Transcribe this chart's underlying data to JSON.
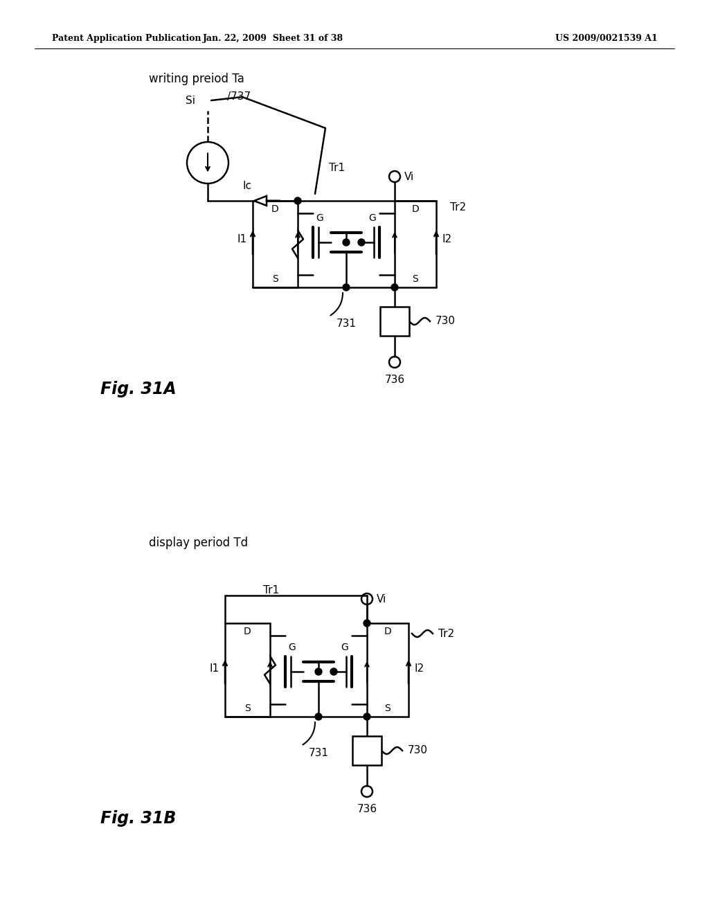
{
  "header_left": "Patent Application Publication",
  "header_mid": "Jan. 22, 2009  Sheet 31 of 38",
  "header_right": "US 2009/0021539 A1",
  "fig_a_label": "writing preiod Ta",
  "fig_b_label": "display period Td",
  "fig_a_name": "Fig. 31A",
  "fig_b_name": "Fig. 31B",
  "bg_color": "#ffffff"
}
